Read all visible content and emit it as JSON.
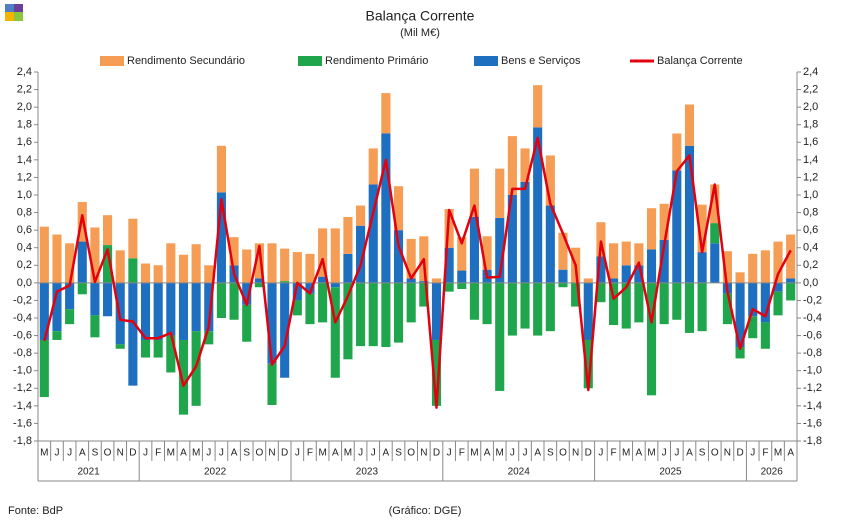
{
  "chart_data": {
    "type": "bar",
    "title": "Balança Corrente",
    "subtitle": "(Mil M€)",
    "source": "Fonte: BdP",
    "credit": "(Gráfico: DGE)",
    "categories": [
      "M",
      "J",
      "J",
      "A",
      "S",
      "O",
      "N",
      "D",
      "J",
      "F",
      "M",
      "A",
      "M",
      "J",
      "J",
      "A",
      "S",
      "O",
      "N",
      "D",
      "J",
      "F",
      "M",
      "A",
      "M",
      "J",
      "J",
      "A",
      "S",
      "O",
      "N",
      "D",
      "J",
      "F",
      "M",
      "A",
      "M",
      "J",
      "J",
      "A",
      "S",
      "O",
      "N",
      "D",
      "J",
      "F",
      "M",
      "A",
      "M",
      "J",
      "J",
      "A",
      "S",
      "O",
      "N",
      "D",
      "J",
      "F",
      "M",
      "A"
    ],
    "years": [
      "2021",
      "2022",
      "2023",
      "2024",
      "2025",
      "2026"
    ],
    "series": [
      {
        "name": "Rendimento Secundário",
        "color": "#f59c55",
        "type": "bar",
        "values": [
          0.64,
          0.55,
          0.45,
          0.45,
          0.63,
          0.34,
          0.37,
          0.45,
          0.22,
          0.2,
          0.45,
          0.32,
          0.44,
          0.2,
          0.53,
          0.32,
          0.38,
          0.4,
          0.45,
          0.37,
          0.35,
          0.33,
          0.55,
          0.62,
          0.42,
          0.23,
          0.41,
          0.46,
          0.5,
          0.45,
          0.51,
          0.05,
          0.44,
          0.38,
          0.55,
          0.38,
          0.56,
          0.67,
          0.38,
          0.48,
          0.57,
          0.42,
          0.4,
          0.05,
          0.39,
          0.4,
          0.27,
          0.25,
          0.47,
          0.41,
          0.42,
          0.47,
          0.54,
          0.44,
          0.36,
          0.12,
          0.33,
          0.37,
          0.47,
          0.5
        ]
      },
      {
        "name": "Rendimento Primário",
        "color": "#1fa64c",
        "type": "bar",
        "values": [
          -0.65,
          -0.1,
          -0.17,
          -0.13,
          -0.25,
          0.43,
          -0.05,
          0.28,
          -0.2,
          -0.2,
          -0.42,
          -0.85,
          -0.85,
          -0.15,
          -0.4,
          -0.42,
          -0.42,
          -0.05,
          -0.47,
          0.02,
          -0.17,
          -0.35,
          -0.45,
          -1.03,
          -0.87,
          -0.72,
          -0.72,
          -0.73,
          -0.68,
          -0.45,
          -0.27,
          -0.75,
          -0.1,
          -0.07,
          -0.42,
          -0.47,
          -1.23,
          -0.6,
          -0.52,
          -0.6,
          -0.55,
          -0.05,
          -0.27,
          -0.55,
          -0.22,
          -0.48,
          -0.52,
          -0.45,
          -1.28,
          -0.47,
          -0.42,
          -0.57,
          -0.55,
          0.23,
          -0.35,
          -0.13,
          -0.25,
          -0.3,
          -0.27,
          -0.2
        ]
      },
      {
        "name": "Bens e Serviços",
        "color": "#1f6fc1",
        "type": "bar",
        "values": [
          -0.65,
          -0.55,
          -0.3,
          0.47,
          -0.37,
          -0.38,
          -0.7,
          -1.17,
          -0.65,
          -0.65,
          -0.6,
          -0.65,
          -0.55,
          -0.55,
          1.03,
          0.2,
          -0.25,
          0.05,
          -0.92,
          -1.08,
          -0.2,
          -0.12,
          0.07,
          -0.05,
          0.33,
          0.65,
          1.12,
          1.7,
          0.6,
          0.05,
          0.02,
          -0.65,
          0.4,
          0.14,
          0.75,
          0.15,
          0.74,
          1.0,
          1.15,
          1.77,
          0.88,
          0.15,
          0.0,
          -0.65,
          0.3,
          0.05,
          0.2,
          0.2,
          0.38,
          0.49,
          1.28,
          1.56,
          0.35,
          0.45,
          -0.12,
          -0.73,
          -0.38,
          -0.45,
          -0.1,
          0.05
        ]
      },
      {
        "name": "Balança Corrente",
        "color": "#e3000f",
        "type": "line",
        "values": [
          -0.66,
          -0.1,
          -0.03,
          0.77,
          0.01,
          0.38,
          -0.42,
          -0.44,
          -0.63,
          -0.63,
          -0.57,
          -1.17,
          -0.95,
          -0.5,
          0.95,
          0.1,
          -0.25,
          0.42,
          -0.93,
          -0.72,
          0.0,
          -0.12,
          0.27,
          -0.45,
          -0.15,
          0.2,
          0.8,
          1.4,
          0.42,
          0.05,
          0.27,
          -1.42,
          0.83,
          0.45,
          0.88,
          0.06,
          0.07,
          1.07,
          1.07,
          1.65,
          0.9,
          0.56,
          0.2,
          -1.22,
          0.47,
          -0.18,
          -0.05,
          0.23,
          -0.45,
          0.43,
          1.27,
          1.45,
          0.35,
          1.12,
          -0.1,
          -0.75,
          -0.3,
          -0.38,
          0.1,
          0.37
        ]
      }
    ],
    "ylim": [
      -1.8,
      2.4
    ],
    "yticks": [
      {
        "value": -1.8,
        "label": "-1,8"
      },
      {
        "value": -1.6,
        "label": "-1,6"
      },
      {
        "value": -1.4,
        "label": "-1,4"
      },
      {
        "value": -1.2,
        "label": "-1,2"
      },
      {
        "value": -1.0,
        "label": "-1,0"
      },
      {
        "value": -0.8,
        "label": "-0,8"
      },
      {
        "value": -0.6,
        "label": "-0,6"
      },
      {
        "value": -0.4,
        "label": "-0,4"
      },
      {
        "value": -0.2,
        "label": "-0,2"
      },
      {
        "value": 0,
        "label": "0,0"
      },
      {
        "value": 0.2,
        "label": "0,2"
      },
      {
        "value": 0.4,
        "label": "0,4"
      },
      {
        "value": 0.6,
        "label": "0,6"
      },
      {
        "value": 0.8,
        "label": "0,8"
      },
      {
        "value": 1.0,
        "label": "1,0"
      },
      {
        "value": 1.2,
        "label": "1,2"
      },
      {
        "value": 1.4,
        "label": "1,4"
      },
      {
        "value": 1.6,
        "label": "1,6"
      },
      {
        "value": 1.8,
        "label": "1,8"
      },
      {
        "value": 2.0,
        "label": "2,0"
      },
      {
        "value": 2.2,
        "label": "2,2"
      },
      {
        "value": 2.4,
        "label": "2,4"
      }
    ]
  }
}
